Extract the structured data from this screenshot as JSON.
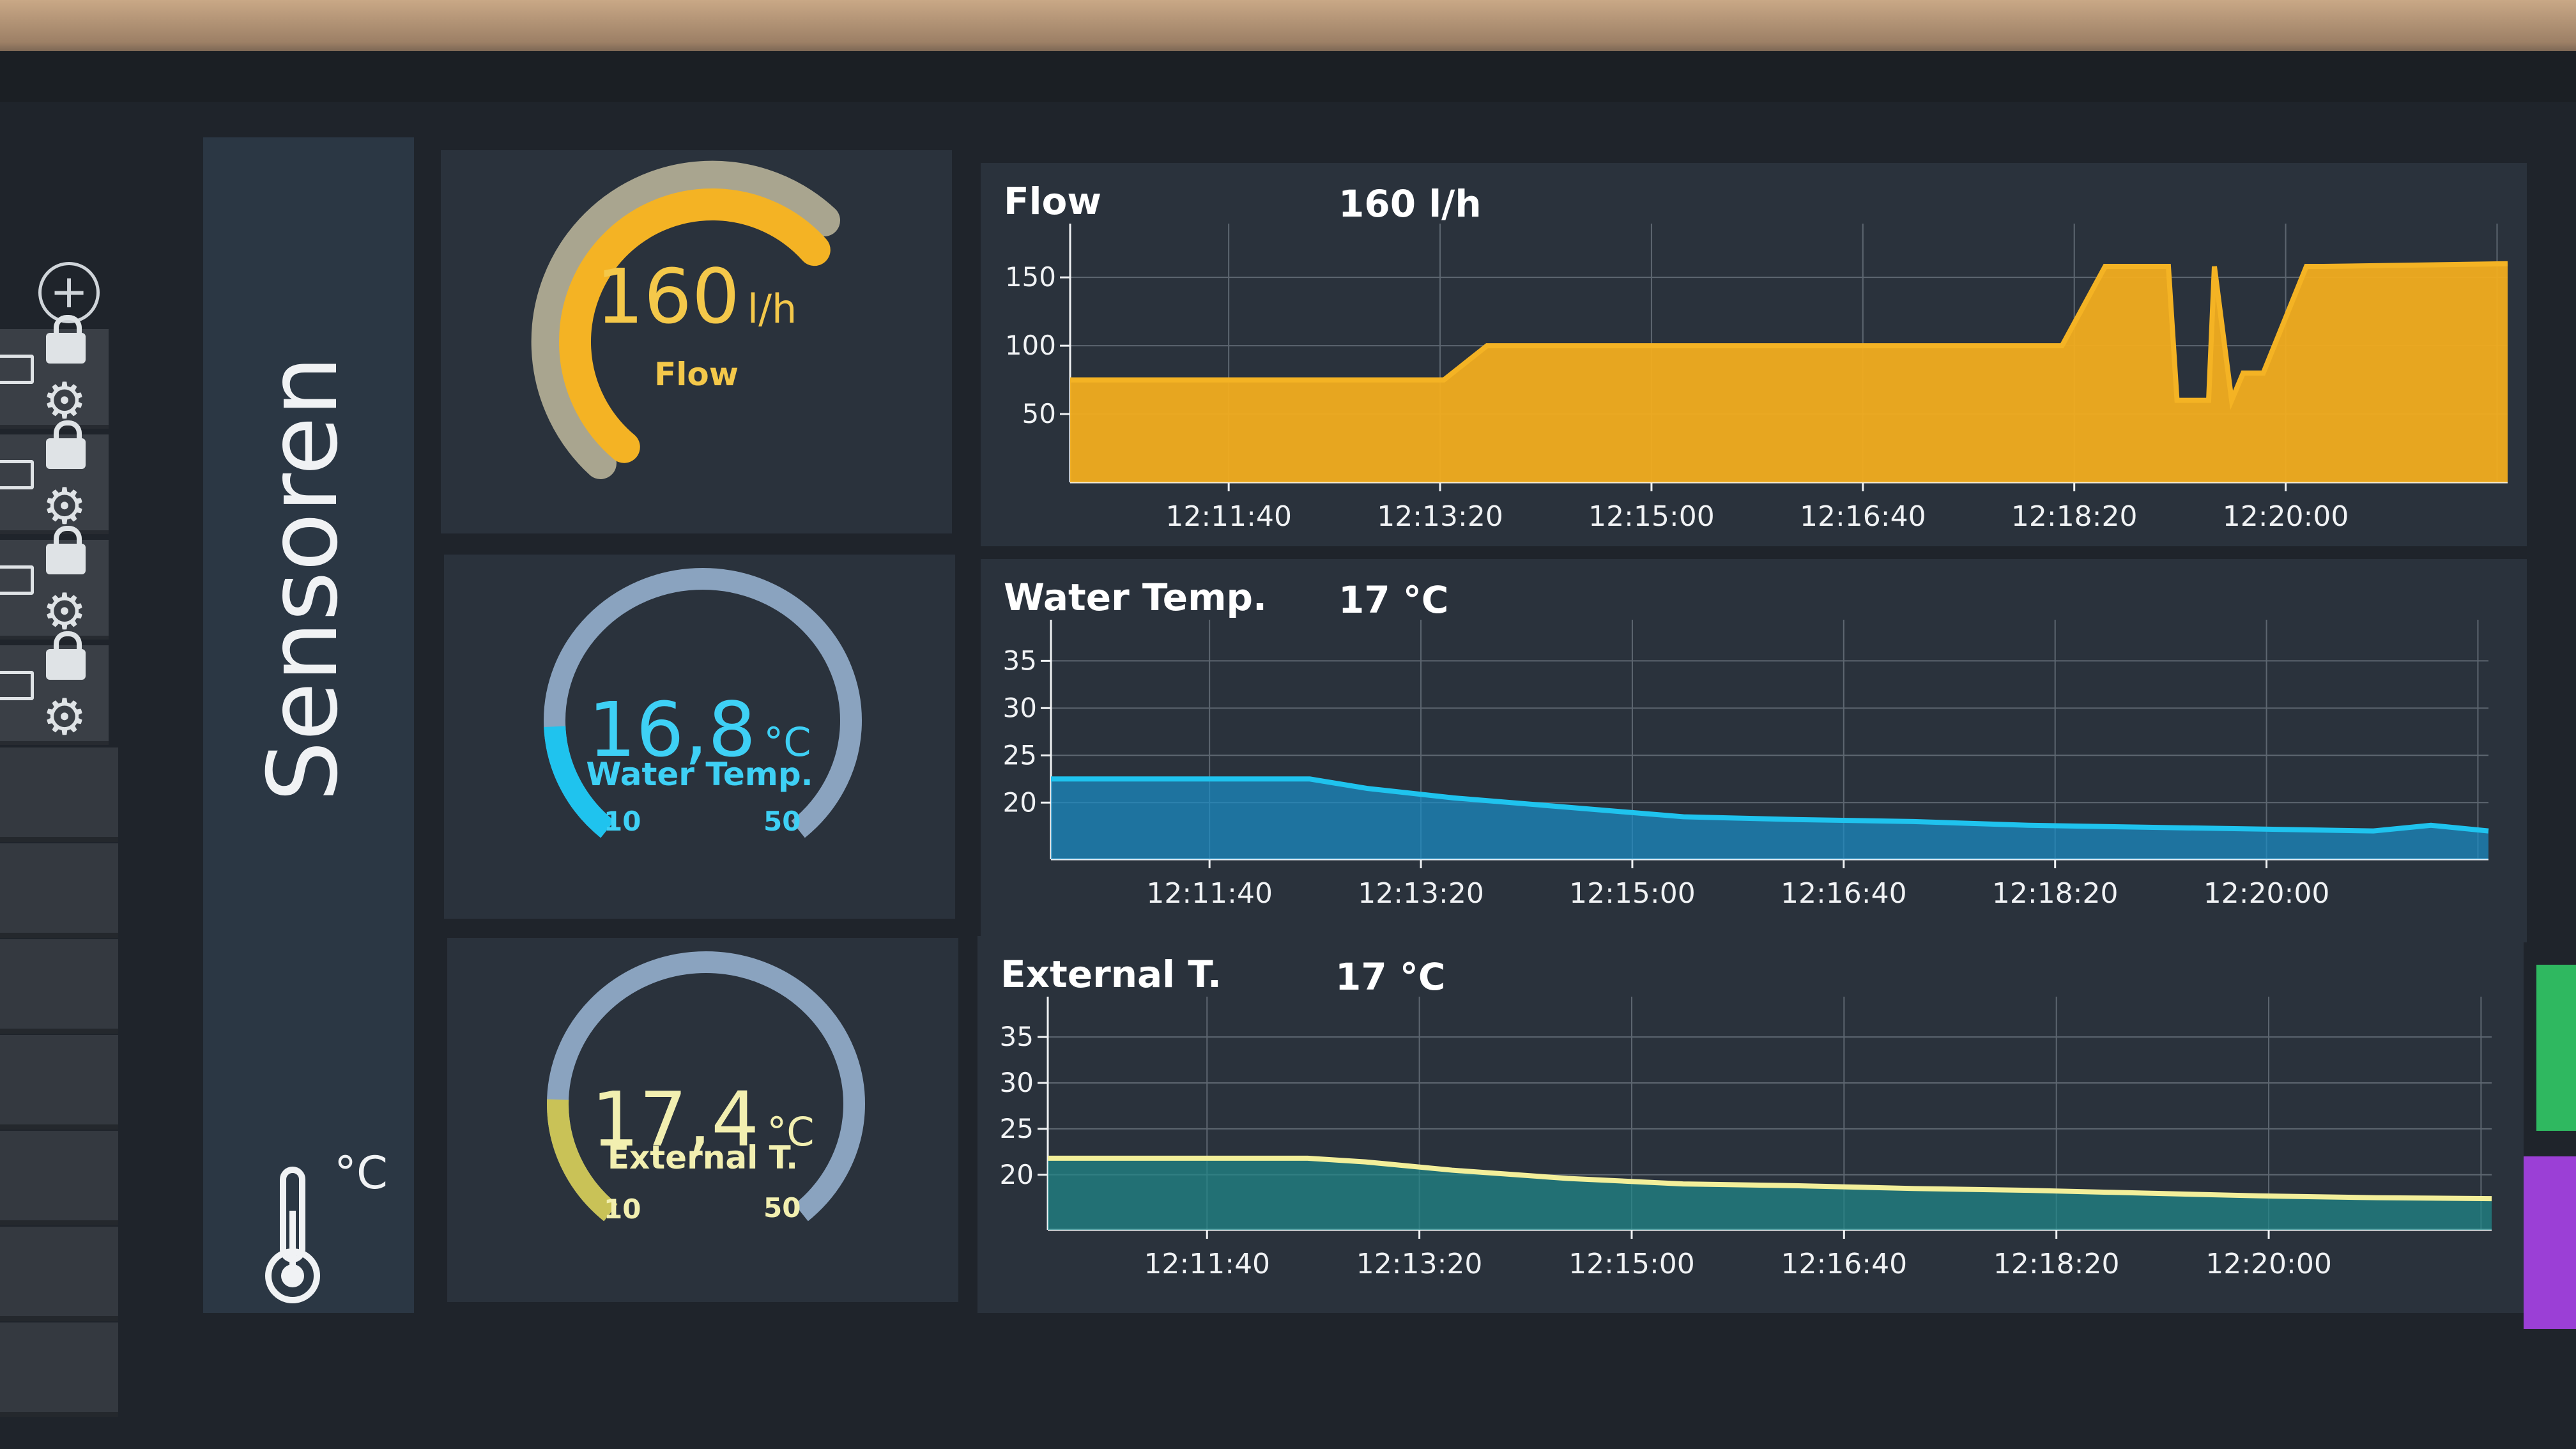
{
  "toolbar": {
    "add_icon": "plus-icon",
    "rows": [
      {
        "icons": [
          "monitor-icon",
          "lock-icon",
          "gear-icon"
        ]
      },
      {
        "icons": [
          "monitor-icon",
          "lock-icon",
          "gear-icon"
        ]
      },
      {
        "icons": [
          "monitor-icon",
          "lock-icon",
          "gear-icon"
        ]
      },
      {
        "icons": [
          "monitor-icon",
          "lock-icon",
          "gear-icon"
        ]
      }
    ]
  },
  "group": {
    "title": "Sensoren",
    "icon": "thermometer-icon",
    "unit": "°C"
  },
  "gauges": [
    {
      "value": "160",
      "unit": "l/h",
      "label": "Flow",
      "color": "#f4b324",
      "fraction": 0.8
    },
    {
      "value": "16,8",
      "unit": "°C",
      "label": "Water Temp.",
      "min": "10",
      "max": "50",
      "color": "#1fc3ee",
      "fraction": 0.17
    },
    {
      "value": "17,4",
      "unit": "°C",
      "label": "External T.",
      "min": "10",
      "max": "50",
      "color": "#c9c257",
      "fraction": 0.185
    }
  ],
  "chart_data": [
    {
      "type": "area",
      "label": "Flow",
      "readout": "160 l/h",
      "color": "#f4b324",
      "ylim": [
        0,
        180
      ],
      "yticks": [
        50,
        100,
        150
      ],
      "xticks": [
        "12:11:40",
        "12:13:20",
        "12:15:00",
        "12:16:40",
        "12:18:20",
        "12:20:00"
      ],
      "x_seconds": [
        0,
        90,
        130,
        145,
        280,
        305,
        345,
        360,
        382,
        385,
        396,
        398,
        404,
        408,
        415,
        430,
        436,
        500
      ],
      "values": [
        75,
        75,
        75,
        100,
        100,
        100,
        100,
        158,
        158,
        60,
        60,
        158,
        60,
        80,
        80,
        158,
        158,
        160
      ]
    },
    {
      "type": "area",
      "label": "Water Temp.",
      "readout": "17 °C",
      "color": "#1fc3ee",
      "ylim": [
        14,
        38
      ],
      "yticks": [
        20,
        25,
        30,
        35
      ],
      "xticks": [
        "12:11:40",
        "12:13:20",
        "12:15:00",
        "12:16:40",
        "12:18:20",
        "12:20:00"
      ],
      "x_seconds": [
        0,
        40,
        90,
        110,
        140,
        180,
        220,
        260,
        300,
        340,
        380,
        420,
        460,
        480,
        500
      ],
      "values": [
        22.5,
        22.5,
        22.5,
        21.5,
        20.5,
        19.5,
        18.5,
        18.2,
        18,
        17.6,
        17.4,
        17.2,
        17,
        17.6,
        17
      ]
    },
    {
      "type": "area",
      "label": "External T.",
      "readout": "17 °C",
      "color": "#f3ef9a",
      "ylim": [
        14,
        38
      ],
      "yticks": [
        20,
        25,
        30,
        35
      ],
      "xticks": [
        "12:11:40",
        "12:13:20",
        "12:15:00",
        "12:16:40",
        "12:18:20",
        "12:20:00"
      ],
      "x_seconds": [
        0,
        40,
        90,
        110,
        140,
        180,
        220,
        260,
        300,
        340,
        380,
        420,
        460,
        500
      ],
      "values": [
        21.8,
        21.8,
        21.8,
        21.4,
        20.5,
        19.6,
        19,
        18.8,
        18.5,
        18.3,
        18,
        17.7,
        17.5,
        17.4
      ]
    }
  ]
}
